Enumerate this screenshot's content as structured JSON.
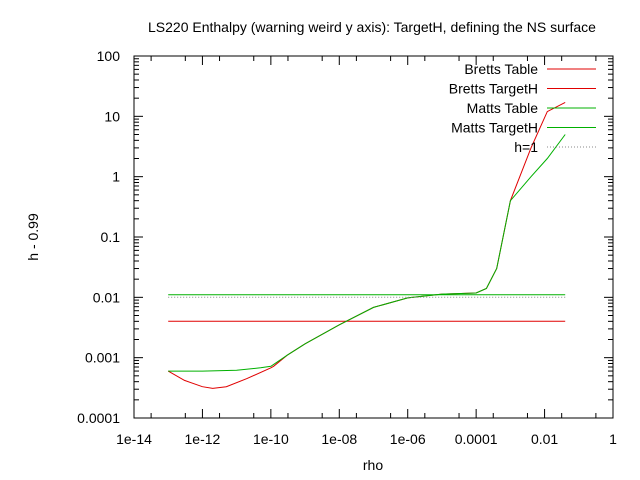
{
  "chart_data": {
    "type": "line",
    "title": "LS220 Enthalpy (warning weird y axis): TargetH, defining the NS surface",
    "xlabel": "rho",
    "ylabel": "h - 0.99",
    "xscale": "log",
    "yscale": "log",
    "xlim": [
      1e-14,
      1
    ],
    "ylim": [
      0.0001,
      100
    ],
    "x_ticks": [
      "1e-14",
      "1e-12",
      "1e-10",
      "1e-08",
      "1e-06",
      "0.0001",
      "0.01",
      "1"
    ],
    "y_ticks": [
      "0.0001",
      "0.001",
      "0.01",
      "0.1",
      "1",
      "10",
      "100"
    ],
    "grid": false,
    "legend_position": "top-right",
    "series": [
      {
        "name": "Bretts Table",
        "color": "#e00000",
        "style": "solid",
        "points": [
          [
            1e-13,
            0.0006
          ],
          [
            3e-13,
            0.00042
          ],
          [
            1e-12,
            0.00033
          ],
          [
            2e-12,
            0.00031
          ],
          [
            5e-12,
            0.00033
          ],
          [
            2e-11,
            0.00045
          ],
          [
            1e-10,
            0.00068
          ],
          [
            1.2e-10,
            0.00072
          ],
          [
            3e-10,
            0.0011
          ],
          [
            1e-09,
            0.0017
          ],
          [
            1e-08,
            0.0035
          ],
          [
            1e-07,
            0.0068
          ],
          [
            1e-06,
            0.0098
          ],
          [
            1e-05,
            0.0113
          ],
          [
            0.0001,
            0.0118
          ],
          [
            0.0002,
            0.014
          ],
          [
            0.0004,
            0.03
          ],
          [
            0.001,
            0.4
          ],
          [
            0.004,
            3
          ],
          [
            0.012,
            12
          ],
          [
            0.04,
            17
          ]
        ]
      },
      {
        "name": "Bretts TargetH",
        "color": "#e00000",
        "style": "solid",
        "points": [
          [
            1e-13,
            0.004
          ],
          [
            0.04,
            0.004
          ]
        ]
      },
      {
        "name": "Matts Table",
        "color": "#00b000",
        "style": "solid",
        "points": [
          [
            1e-13,
            0.0006
          ],
          [
            1e-12,
            0.0006
          ],
          [
            1e-11,
            0.00062
          ],
          [
            5e-11,
            0.00068
          ],
          [
            1e-10,
            0.00072
          ],
          [
            3e-10,
            0.0011
          ],
          [
            1e-09,
            0.0017
          ],
          [
            1e-08,
            0.0035
          ],
          [
            1e-07,
            0.0068
          ],
          [
            1e-06,
            0.0098
          ],
          [
            1e-05,
            0.0113
          ],
          [
            0.0001,
            0.0118
          ],
          [
            0.0002,
            0.014
          ],
          [
            0.0004,
            0.03
          ],
          [
            0.001,
            0.4
          ],
          [
            0.004,
            1.0
          ],
          [
            0.012,
            2.0
          ],
          [
            0.04,
            5
          ]
        ]
      },
      {
        "name": "Matts TargetH",
        "color": "#00b000",
        "style": "solid",
        "points": [
          [
            1e-13,
            0.011
          ],
          [
            0.04,
            0.011
          ]
        ]
      },
      {
        "name": "h=1",
        "color": "#888888",
        "style": "dotted",
        "points": [
          [
            1e-13,
            0.01
          ],
          [
            0.04,
            0.01
          ]
        ]
      }
    ]
  }
}
